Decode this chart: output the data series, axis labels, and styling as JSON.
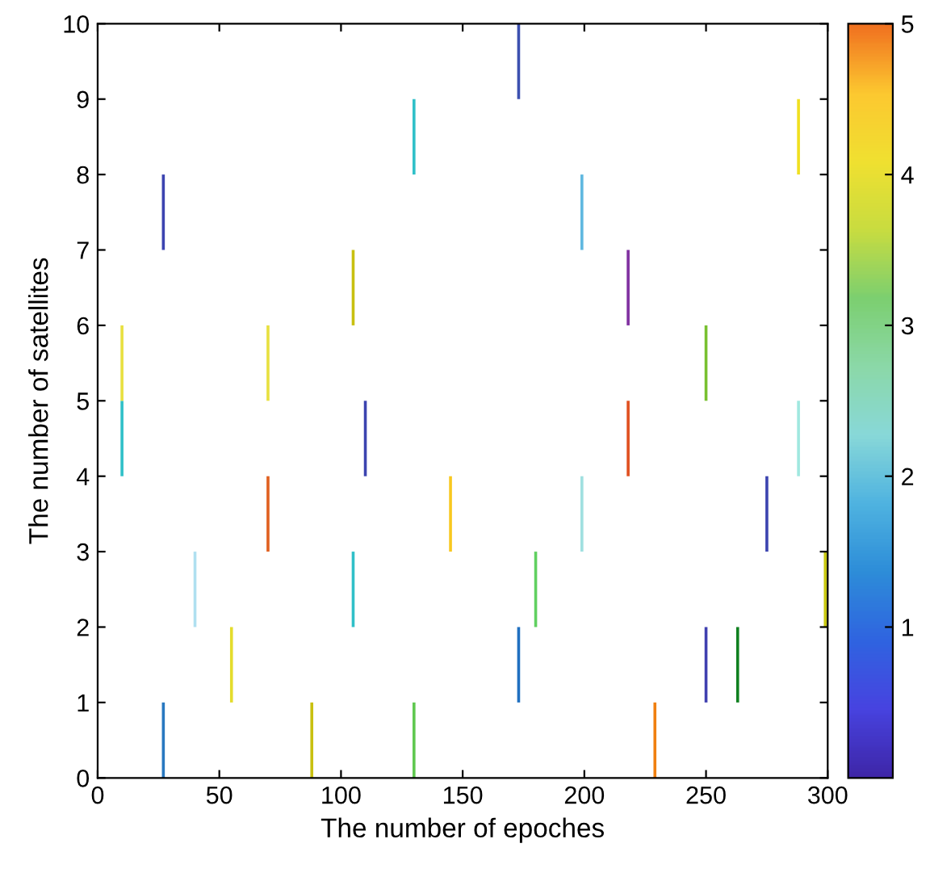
{
  "chart_data": {
    "type": "bar",
    "xlabel": "The number of epoches",
    "ylabel": "The number of satellites",
    "series": [
      {
        "x": [
          27,
          88,
          130,
          229
        ],
        "base": [
          0,
          0,
          0,
          0
        ],
        "values": [
          1,
          1,
          1,
          1
        ],
        "colors": [
          "#2878c0",
          "#c8c010",
          "#60c850",
          "#f08010"
        ]
      },
      {
        "x": [
          55,
          173,
          250,
          263
        ],
        "base": [
          1,
          1,
          1,
          1
        ],
        "values": [
          1,
          1,
          1,
          1
        ],
        "colors": [
          "#e4dc2c",
          "#2070c0",
          "#4040b0",
          "#108020"
        ]
      },
      {
        "x": [
          40,
          105,
          180,
          299
        ],
        "base": [
          2,
          2,
          2,
          2
        ],
        "values": [
          1,
          1,
          1,
          1
        ],
        "colors": [
          "#b0e0f0",
          "#30c0c8",
          "#60d060",
          "#c8c810"
        ]
      },
      {
        "x": [
          70,
          145,
          199,
          275
        ],
        "base": [
          3,
          3,
          3,
          3
        ],
        "values": [
          1,
          1,
          1,
          1
        ],
        "colors": [
          "#e06020",
          "#f8c820",
          "#a0e0e0",
          "#3c44b0"
        ]
      },
      {
        "x": [
          10,
          110,
          218,
          288
        ],
        "base": [
          4,
          4,
          4,
          4
        ],
        "values": [
          1,
          1,
          1,
          1
        ],
        "colors": [
          "#30c0c8",
          "#3c44b0",
          "#e05020",
          "#a0e8e0"
        ]
      },
      {
        "x": [
          10,
          70,
          250
        ],
        "base": [
          5,
          5,
          5
        ],
        "values": [
          1,
          1,
          1
        ],
        "colors": [
          "#e8e040",
          "#e8e040",
          "#78c030"
        ]
      },
      {
        "x": [
          105,
          218
        ],
        "base": [
          6,
          6
        ],
        "values": [
          1,
          1
        ],
        "colors": [
          "#c8c010",
          "#8030a0"
        ]
      },
      {
        "x": [
          27,
          199
        ],
        "base": [
          7,
          7
        ],
        "values": [
          1,
          1
        ],
        "colors": [
          "#3c44b0",
          "#60b8e0"
        ]
      },
      {
        "x": [
          130,
          288
        ],
        "base": [
          8,
          8
        ],
        "values": [
          1,
          1
        ],
        "colors": [
          "#30c0c8",
          "#f0e020"
        ]
      },
      {
        "x": [
          173
        ],
        "base": [
          9
        ],
        "values": [
          1
        ],
        "colors": [
          "#3c50b0"
        ]
      }
    ],
    "xlim": [
      0,
      300
    ],
    "xticks": [
      0,
      50,
      100,
      150,
      200,
      250,
      300
    ],
    "ylim": [
      0,
      10
    ],
    "yticks": [
      0,
      1,
      2,
      3,
      4,
      5,
      6,
      7,
      8,
      9,
      10
    ],
    "clim": [
      0,
      5
    ],
    "cticks": [
      1,
      2,
      3,
      4,
      5
    ],
    "grid": false,
    "legend": false
  }
}
